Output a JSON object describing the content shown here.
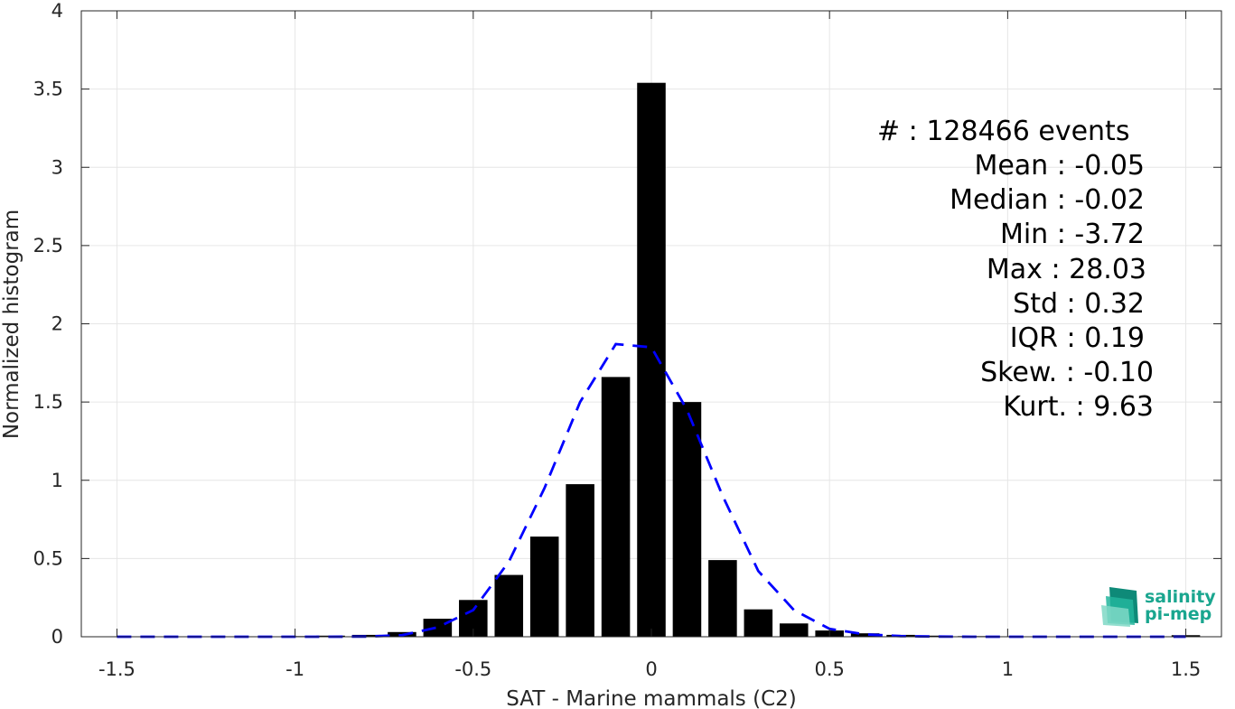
{
  "chart_data": {
    "type": "bar",
    "xlabel": "SAT - Marine mammals (C2)",
    "ylabel": "Normalized histogram",
    "xlim": [
      -1.6,
      1.6
    ],
    "ylim": [
      0,
      4
    ],
    "xticks": [
      -1.5,
      -1,
      -0.5,
      0,
      0.5,
      1,
      1.5
    ],
    "xtick_labels": [
      "-1.5",
      "-1",
      "-0.5",
      "0",
      "0.5",
      "1",
      "1.5"
    ],
    "yticks": [
      0,
      0.5,
      1,
      1.5,
      2,
      2.5,
      3,
      3.5,
      4
    ],
    "ytick_labels": [
      "0",
      "0.5",
      "1",
      "1.5",
      "2",
      "2.5",
      "3",
      "3.5",
      "4"
    ],
    "grid": true,
    "bars": {
      "color": "#000000",
      "bin_width": 0.1,
      "x": [
        -1.5,
        -1.4,
        -1.3,
        -1.2,
        -1.1,
        -1.0,
        -0.9,
        -0.8,
        -0.7,
        -0.6,
        -0.5,
        -0.4,
        -0.3,
        -0.2,
        -0.1,
        0.0,
        0.1,
        0.2,
        0.3,
        0.4,
        0.5,
        0.6,
        0.7,
        0.8,
        0.9,
        1.0,
        1.1,
        1.2,
        1.3,
        1.4,
        1.5
      ],
      "values": [
        0.002,
        0.002,
        0.002,
        0.003,
        0.003,
        0.004,
        0.007,
        0.012,
        0.03,
        0.115,
        0.235,
        0.395,
        0.64,
        0.975,
        1.66,
        3.54,
        1.5,
        0.49,
        0.175,
        0.085,
        0.04,
        0.022,
        0.012,
        0.007,
        0.004,
        0.003,
        0.002,
        0.002,
        0.002,
        0.002,
        0.01
      ]
    },
    "fit": {
      "color": "#0000ff",
      "style": "dashed",
      "x": [
        -1.5,
        -1.4,
        -1.3,
        -1.2,
        -1.1,
        -1.0,
        -0.9,
        -0.8,
        -0.7,
        -0.6,
        -0.5,
        -0.4,
        -0.3,
        -0.2,
        -0.1,
        0.0,
        0.1,
        0.2,
        0.3,
        0.4,
        0.5,
        0.6,
        0.7,
        0.8,
        0.9,
        1.0,
        1.1,
        1.2,
        1.3,
        1.4,
        1.5
      ],
      "y": [
        0.0,
        0.0,
        0.0,
        0.0,
        0.0,
        0.0,
        0.0,
        0.001,
        0.01,
        0.06,
        0.17,
        0.48,
        0.95,
        1.5,
        1.87,
        1.85,
        1.45,
        0.9,
        0.42,
        0.17,
        0.05,
        0.015,
        0.004,
        0.001,
        0.0,
        0.0,
        0.0,
        0.0,
        0.0,
        0.0,
        0.0
      ]
    }
  },
  "stats": [
    {
      "label": "#  : 128466 events"
    },
    {
      "label": "Mean : -0.05"
    },
    {
      "label": "Median : -0.02"
    },
    {
      "label": "Min : -3.72"
    },
    {
      "label": "Max : 28.03"
    },
    {
      "label": "Std : 0.32"
    },
    {
      "label": "IQR : 0.19"
    },
    {
      "label": "Skew. : -0.10"
    },
    {
      "label": "Kurt. : 9.63"
    }
  ],
  "logo": {
    "line1": "salinity",
    "line2": "pi-mep",
    "color": "#1aa68f"
  }
}
